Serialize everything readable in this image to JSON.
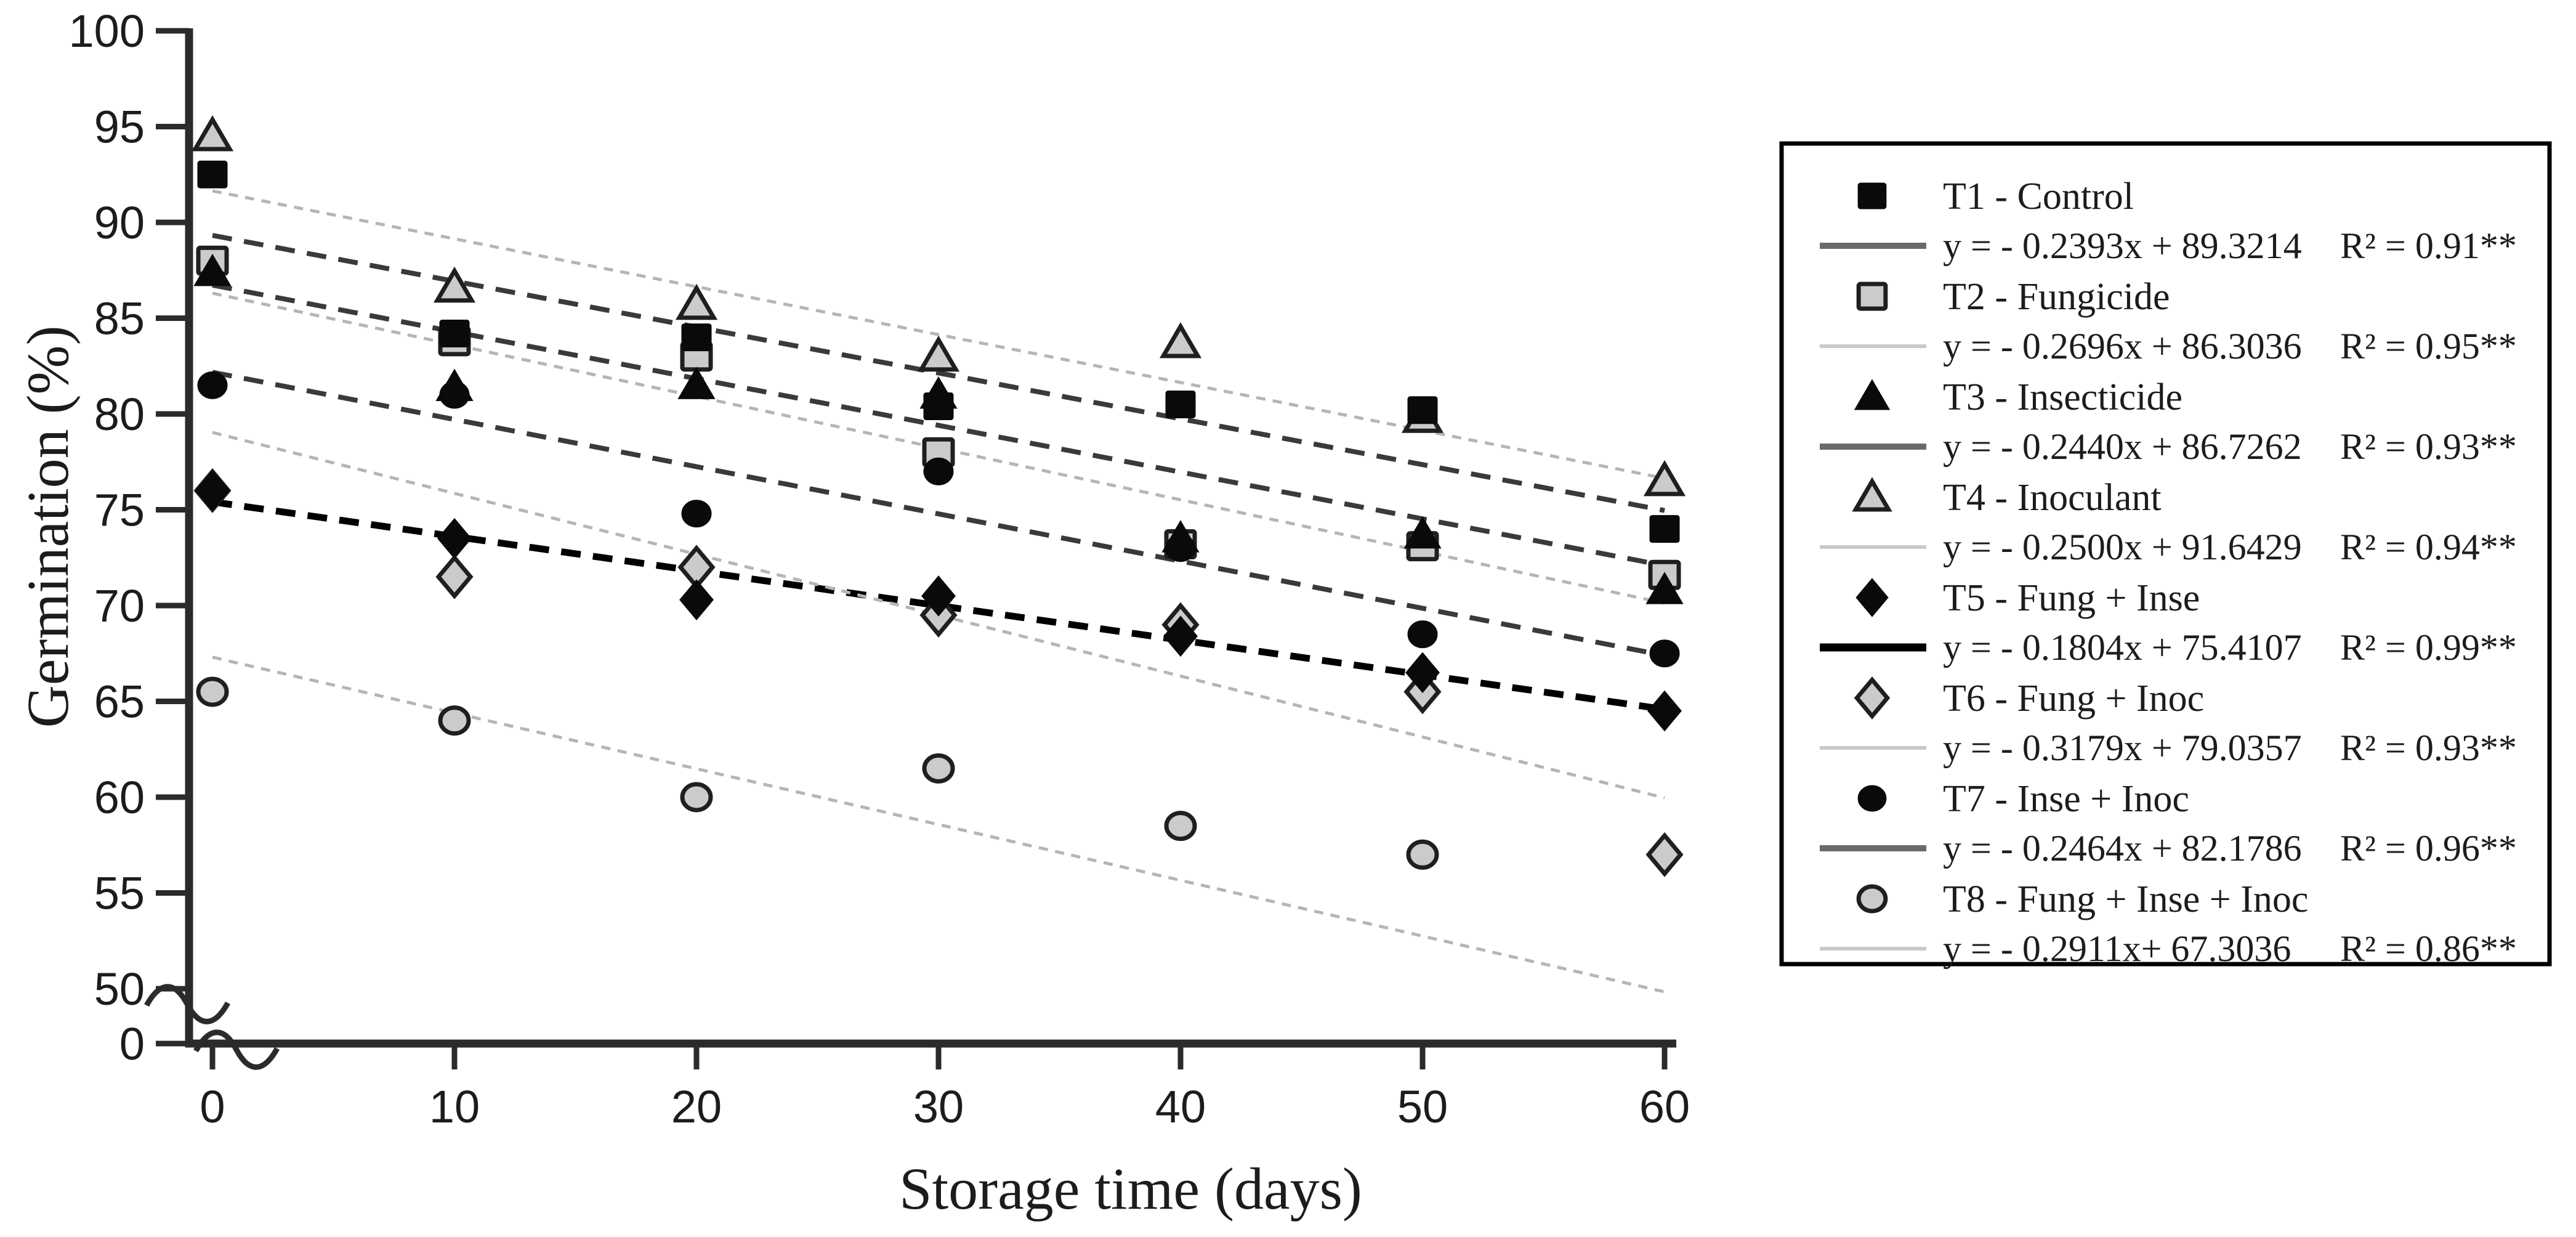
{
  "chart_data": {
    "type": "scatter",
    "title": "",
    "xlabel": "Storage time (days)",
    "ylabel": "Germination (%)",
    "x_tick_labels": [
      "0",
      "10",
      "20",
      "30",
      "40",
      "50",
      "60"
    ],
    "y_tick_labels": [
      "0",
      "50",
      "55",
      "60",
      "65",
      "70",
      "75",
      "80",
      "85",
      "90",
      "95",
      "100"
    ],
    "xlim": [
      0,
      60
    ],
    "ylim": [
      50,
      100
    ],
    "y_axis_break": true,
    "grid": false,
    "legend_position": "right-outside-box",
    "x": [
      0,
      10,
      20,
      30,
      40,
      50,
      60
    ],
    "series": [
      {
        "id": "T1",
        "label": "T1 -  Control",
        "equation": "y = - 0.2393x + 89.3214",
        "r2": "R² = 0.91**",
        "slope": -0.2393,
        "intercept": 89.3214,
        "marker": "square-filled",
        "line": "dark",
        "values": [
          92.5,
          84.2,
          84.0,
          80.4,
          80.5,
          80.2,
          74.0
        ]
      },
      {
        "id": "T2",
        "label": "T2 - Fungicide",
        "equation": "y = - 0.2696x + 86.3036",
        "r2": "R² = 0.95**",
        "slope": -0.2696,
        "intercept": 86.3036,
        "marker": "square-open",
        "line": "light",
        "values": [
          88.0,
          83.8,
          83.0,
          78.0,
          73.2,
          73.1,
          71.6
        ]
      },
      {
        "id": "T3",
        "label": "T3 -  Insecticide",
        "equation": "y = - 0.2440x + 86.7262",
        "r2": "R² = 0.93**",
        "slope": -0.244,
        "intercept": 86.7262,
        "marker": "triangle-filled",
        "line": "dark",
        "values": [
          87.4,
          81.4,
          81.5,
          81.0,
          73.5,
          73.7,
          70.8
        ]
      },
      {
        "id": "T4",
        "label": "T4 - Inoculant",
        "equation": "y = - 0.2500x + 91.6429",
        "r2": "R² = 0.94**",
        "slope": -0.25,
        "intercept": 91.6429,
        "marker": "triangle-open",
        "line": "light",
        "values": [
          94.5,
          86.6,
          85.7,
          83.0,
          83.7,
          79.8,
          76.5
        ]
      },
      {
        "id": "T5",
        "label": "T5 - Fung + Inse",
        "equation": "y = - 0.1804x  + 75.4107",
        "r2": "R² = 0.99**",
        "slope": -0.1804,
        "intercept": 75.4107,
        "marker": "diamond-filled",
        "line": "black-thick",
        "values": [
          76.0,
          73.5,
          70.3,
          70.5,
          68.4,
          66.5,
          64.5
        ]
      },
      {
        "id": "T6",
        "label": "T6 - Fung + Inoc",
        "equation": "y = - 0.3179x + 79.0357",
        "r2": "R² = 0.93**",
        "slope": -0.3179,
        "intercept": 79.0357,
        "marker": "diamond-open",
        "line": "light",
        "values": [
          76.0,
          71.5,
          72.0,
          69.5,
          69.0,
          65.5,
          57.0
        ]
      },
      {
        "id": "T7",
        "label": "T7 - Inse  + Inoc",
        "equation": "y = - 0.2464x + 82.1786",
        "r2": "R² = 0.96**",
        "slope": -0.2464,
        "intercept": 82.1786,
        "marker": "circle-filled",
        "line": "dark",
        "values": [
          81.5,
          81.0,
          74.8,
          77.0,
          73.0,
          68.5,
          67.5
        ]
      },
      {
        "id": "T8",
        "label": "T8 - Fung + Inse  + Inoc",
        "equation": "y = - 0.2911x+ 67.3036",
        "r2": "R² = 0.86**",
        "slope": -0.2911,
        "intercept": 67.3036,
        "marker": "circle-open",
        "line": "light",
        "values": [
          65.5,
          64.0,
          60.0,
          61.5,
          58.5,
          57.0,
          null
        ]
      }
    ],
    "draw_order": [
      "T6",
      "T2",
      "T4",
      "T8",
      "T7",
      "T3",
      "T1",
      "T5"
    ],
    "colors": {
      "black_marker": "#0a0a0a",
      "gray_marker_fill": "#cbcbcb",
      "marker_stroke": "#1f1f1f",
      "dark_line": "#3a3a3a",
      "black_line": "#000000",
      "light_line": "#b5b5b5",
      "legend_dark_swatch": "#6a6a6a",
      "legend_light_swatch": "#c9c9c9",
      "axis": "#2b2b2b",
      "text": "#1c1c1c",
      "legend_border": "#000000",
      "background": "#ffffff"
    }
  }
}
